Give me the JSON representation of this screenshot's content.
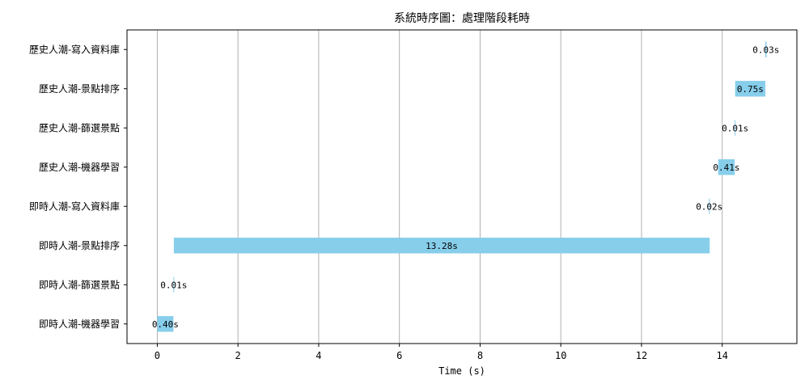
{
  "chart_data": {
    "type": "bar",
    "orientation": "horizontal-gantt",
    "title": "系統時序圖：處理階段耗時",
    "xlabel": "Time (s)",
    "ylabel": "",
    "xlim": [
      -0.75,
      15.85
    ],
    "xticks": [
      0,
      2,
      4,
      6,
      8,
      10,
      12,
      14
    ],
    "grid": "x",
    "bar_color": "#87ceeb",
    "tasks": [
      {
        "label": "歷史人潮-寫入資料庫",
        "start": 15.07,
        "duration": 0.03,
        "text": "0.03s"
      },
      {
        "label": "歷史人潮-景點排序",
        "start": 14.32,
        "duration": 0.75,
        "text": "0.75s"
      },
      {
        "label": "歷史人潮-篩選景點",
        "start": 14.31,
        "duration": 0.01,
        "text": "0.01s"
      },
      {
        "label": "歷史人潮-機器學習",
        "start": 13.9,
        "duration": 0.41,
        "text": "0.41s"
      },
      {
        "label": "即時人潮-寫入資料庫",
        "start": 13.67,
        "duration": 0.02,
        "text": "0.02s"
      },
      {
        "label": "即時人潮-景點排序",
        "start": 0.41,
        "duration": 13.28,
        "text": "13.28s"
      },
      {
        "label": "即時人潮-篩選景點",
        "start": 0.4,
        "duration": 0.01,
        "text": "0.01s"
      },
      {
        "label": "即時人潮-機器學習",
        "start": 0.0,
        "duration": 0.4,
        "text": "0.40s"
      }
    ]
  }
}
